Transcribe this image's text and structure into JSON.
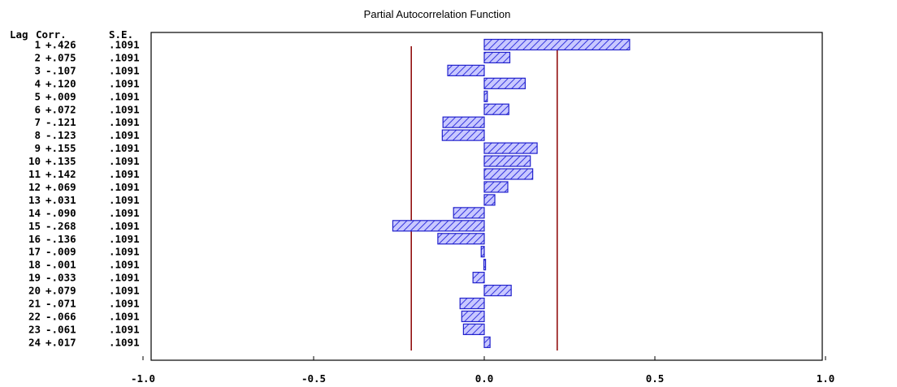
{
  "chart_data": {
    "type": "bar",
    "orientation": "horizontal",
    "title": "Partial Autocorrelation Function",
    "table_headers": {
      "lag": "Lag",
      "corr": "Corr.",
      "se": "S.E."
    },
    "rows": [
      {
        "lag": "1",
        "corr": "+.426",
        "se": ".1091",
        "value": 0.426
      },
      {
        "lag": "2",
        "corr": "+.075",
        "se": ".1091",
        "value": 0.075
      },
      {
        "lag": "3",
        "corr": "-.107",
        "se": ".1091",
        "value": -0.107
      },
      {
        "lag": "4",
        "corr": "+.120",
        "se": ".1091",
        "value": 0.12
      },
      {
        "lag": "5",
        "corr": "+.009",
        "se": ".1091",
        "value": 0.009
      },
      {
        "lag": "6",
        "corr": "+.072",
        "se": ".1091",
        "value": 0.072
      },
      {
        "lag": "7",
        "corr": "-.121",
        "se": ".1091",
        "value": -0.121
      },
      {
        "lag": "8",
        "corr": "-.123",
        "se": ".1091",
        "value": -0.123
      },
      {
        "lag": "9",
        "corr": "+.155",
        "se": ".1091",
        "value": 0.155
      },
      {
        "lag": "10",
        "corr": "+.135",
        "se": ".1091",
        "value": 0.135
      },
      {
        "lag": "11",
        "corr": "+.142",
        "se": ".1091",
        "value": 0.142
      },
      {
        "lag": "12",
        "corr": "+.069",
        "se": ".1091",
        "value": 0.069
      },
      {
        "lag": "13",
        "corr": "+.031",
        "se": ".1091",
        "value": 0.031
      },
      {
        "lag": "14",
        "corr": "-.090",
        "se": ".1091",
        "value": -0.09
      },
      {
        "lag": "15",
        "corr": "-.268",
        "se": ".1091",
        "value": -0.268
      },
      {
        "lag": "16",
        "corr": "-.136",
        "se": ".1091",
        "value": -0.136
      },
      {
        "lag": "17",
        "corr": "-.009",
        "se": ".1091",
        "value": -0.009
      },
      {
        "lag": "18",
        "corr": "-.001",
        "se": ".1091",
        "value": -0.001
      },
      {
        "lag": "19",
        "corr": "-.033",
        "se": ".1091",
        "value": -0.033
      },
      {
        "lag": "20",
        "corr": "+.079",
        "se": ".1091",
        "value": 0.079
      },
      {
        "lag": "21",
        "corr": "-.071",
        "se": ".1091",
        "value": -0.071
      },
      {
        "lag": "22",
        "corr": "-.066",
        "se": ".1091",
        "value": -0.066
      },
      {
        "lag": "23",
        "corr": "-.061",
        "se": ".1091",
        "value": -0.061
      },
      {
        "lag": "24",
        "corr": "+.017",
        "se": ".1091",
        "value": 0.017
      }
    ],
    "x_ticks": [
      {
        "value": -1.0,
        "label": "-1.0"
      },
      {
        "value": -0.5,
        "label": "-0.5"
      },
      {
        "value": 0.0,
        "label": "0.0"
      },
      {
        "value": 0.5,
        "label": "0.5"
      },
      {
        "value": 1.0,
        "label": "1.0"
      }
    ],
    "xlim": [
      -1.0,
      1.0
    ],
    "confidence_limits": [
      -0.2138,
      0.2138
    ],
    "grid": false,
    "colors": {
      "bar_fill": "#c8c8ff",
      "bar_stroke": "#2222cc",
      "bar_hatch": "#3333dd",
      "confidence_line": "#8b0000",
      "frame": "#000000"
    }
  }
}
